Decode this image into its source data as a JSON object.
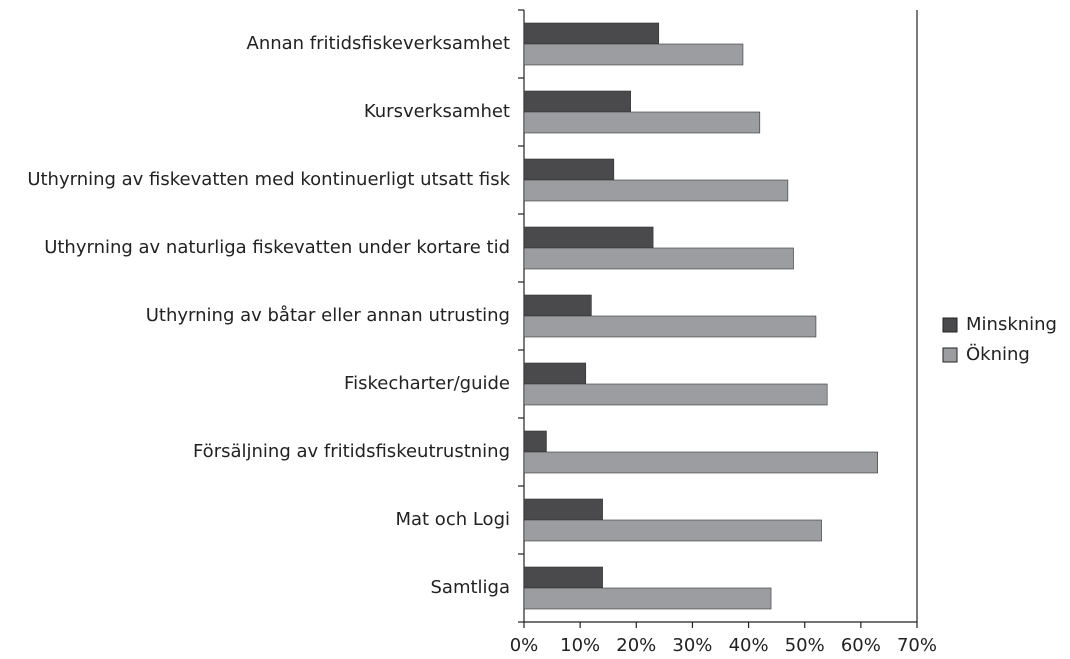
{
  "chart_data": {
    "type": "hbar",
    "categories": [
      "Annan fritidsfiskeverksamhet",
      "Kursverksamhet",
      "Uthyrning av fiskevatten med kontinuerligt utsatt fisk",
      "Uthyrning av naturliga fiskevatten under kortare tid",
      "Uthyrning av båtar eller annan utrusting",
      "Fiskecharter/guide",
      "Försäljning av fritidsfiskeutrustning",
      "Mat och Logi",
      "Samtliga"
    ],
    "series": [
      {
        "name": "Minskning",
        "color": "#4a4a4c",
        "values": [
          24,
          19,
          16,
          23,
          12,
          11,
          4,
          14,
          14
        ]
      },
      {
        "name": "Ökning",
        "color": "#9c9da0",
        "values": [
          39,
          42,
          47,
          48,
          52,
          54,
          63,
          53,
          44
        ]
      }
    ],
    "xlim": [
      0,
      70
    ],
    "xticks": [
      {
        "value": 0,
        "label": "0%"
      },
      {
        "value": 10,
        "label": "10%"
      },
      {
        "value": 20,
        "label": "20%"
      },
      {
        "value": 30,
        "label": "30%"
      },
      {
        "value": 40,
        "label": "40%"
      },
      {
        "value": 50,
        "label": "50%"
      },
      {
        "value": 60,
        "label": "60%"
      },
      {
        "value": 70,
        "label": "70%"
      }
    ],
    "legend": "right"
  }
}
